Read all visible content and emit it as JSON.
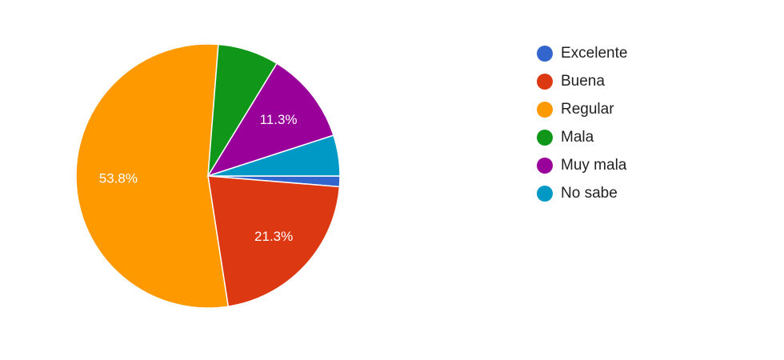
{
  "chart_data": {
    "type": "pie",
    "categories": [
      "Excelente",
      "Buena",
      "Regular",
      "Mala",
      "Muy mala",
      "No sabe"
    ],
    "values": [
      1.3,
      21.3,
      53.8,
      7.5,
      11.3,
      5.0
    ],
    "value_labels": [
      null,
      "21.3%",
      "53.8%",
      null,
      "11.3%",
      null
    ],
    "colors": [
      "#3366cc",
      "#dc3912",
      "#ff9900",
      "#109618",
      "#990099",
      "#0099c6"
    ],
    "legend": "right"
  }
}
